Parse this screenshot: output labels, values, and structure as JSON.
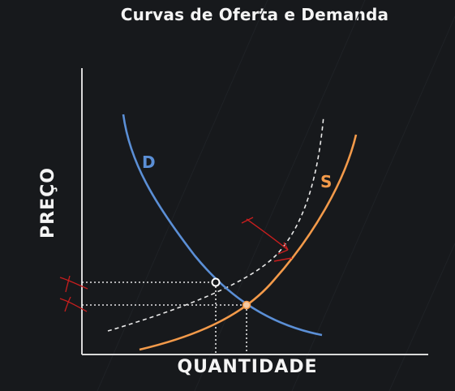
{
  "title": "Curvas de Oferta e Demanda",
  "axes": {
    "xlabel": "QUANTIDADE",
    "ylabel": "PREÇO"
  },
  "curves": {
    "demand": {
      "label": "D",
      "color": "#5b8fd6"
    },
    "supply": {
      "label": "S",
      "color": "#f39a4a"
    },
    "shifted_supply_color": "#e9e9e9"
  },
  "annotations": {
    "mark_color": "#c81e1e"
  }
}
